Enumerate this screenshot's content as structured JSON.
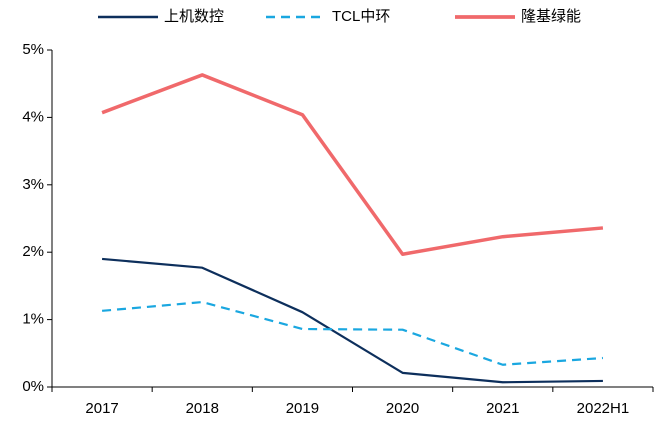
{
  "chart_data": {
    "type": "line",
    "categories": [
      "2017",
      "2018",
      "2019",
      "2020",
      "2021",
      "2022H1"
    ],
    "series": [
      {
        "name": "上机数控",
        "color": "#0d2f5c",
        "dashed": false,
        "values": [
          1.9,
          1.77,
          1.11,
          0.21,
          0.07,
          0.09
        ]
      },
      {
        "name": "TCL中环",
        "color": "#1aa7e0",
        "dashed": true,
        "values": [
          1.13,
          1.26,
          0.86,
          0.85,
          0.33,
          0.43
        ]
      },
      {
        "name": "隆基绿能",
        "color": "#f0696b",
        "dashed": false,
        "values": [
          4.07,
          4.63,
          4.04,
          1.97,
          2.23,
          2.36
        ]
      }
    ],
    "ylim": [
      0,
      5
    ],
    "yticks": [
      {
        "value": 0,
        "label": "0%"
      },
      {
        "value": 1,
        "label": "1%"
      },
      {
        "value": 2,
        "label": "2%"
      },
      {
        "value": 3,
        "label": "3%"
      },
      {
        "value": 4,
        "label": "4%"
      },
      {
        "value": 5,
        "label": "5%"
      }
    ],
    "legend": "top"
  }
}
